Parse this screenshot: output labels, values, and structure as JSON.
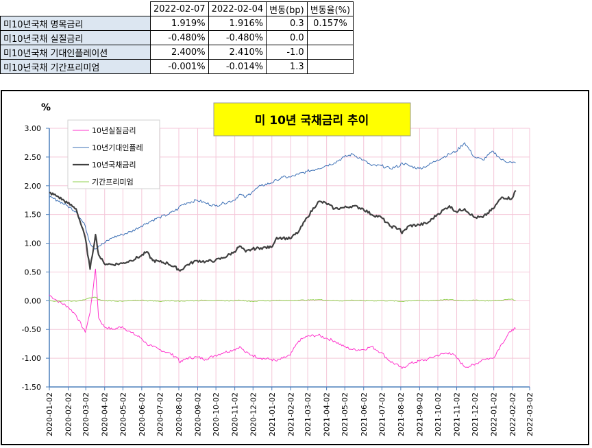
{
  "table": {
    "headers": [
      "2022-02-07",
      "2022-02-04",
      "변동(bp)",
      "변동율(%)"
    ],
    "rows": [
      {
        "label": "미10년국채 명목금리",
        "v1": "1.919%",
        "v2": "1.916%",
        "bp": "0.3",
        "pct": "0.157%"
      },
      {
        "label": "미10년국채 실질금리",
        "v1": "-0.480%",
        "v2": "-0.480%",
        "bp": "0.0",
        "pct": ""
      },
      {
        "label": "미10년국채 기대인플레이션",
        "v1": "2.400%",
        "v2": "2.410%",
        "bp": "-1.0",
        "pct": ""
      },
      {
        "label": "미10년국채 기간프리미엄",
        "v1": "-0.001%",
        "v2": "-0.014%",
        "bp": "1.3",
        "pct": ""
      }
    ]
  },
  "chart_data": {
    "type": "line",
    "title": "미 10년 국채금리 추이",
    "ylabel": "%",
    "ylim": [
      -1.5,
      3.0
    ],
    "yticks": [
      "3.00",
      "2.50",
      "2.00",
      "1.50",
      "1.00",
      "0.50",
      "0.00",
      "-0.50",
      "-1.00",
      "-1.50"
    ],
    "xlim": [
      "2020-01-02",
      "2022-03-02"
    ],
    "xticks": [
      "2020-01-02",
      "2020-02-02",
      "2020-03-02",
      "2020-04-02",
      "2020-05-02",
      "2020-06-02",
      "2020-07-02",
      "2020-08-02",
      "2020-09-02",
      "2020-10-02",
      "2020-11-02",
      "2020-12-02",
      "2021-01-02",
      "2021-02-02",
      "2021-03-02",
      "2021-04-02",
      "2021-05-02",
      "2021-06-02",
      "2021-07-02",
      "2021-08-02",
      "2021-09-02",
      "2021-10-02",
      "2021-11-02",
      "2021-12-02",
      "2022-01-02",
      "2022-02-02",
      "2022-03-02"
    ],
    "grid": true,
    "legend_position": "top-left",
    "x": [
      "2020-01-02",
      "2020-01-15",
      "2020-02-01",
      "2020-02-15",
      "2020-03-01",
      "2020-03-09",
      "2020-03-18",
      "2020-03-23",
      "2020-04-01",
      "2020-04-15",
      "2020-05-01",
      "2020-05-15",
      "2020-06-01",
      "2020-06-10",
      "2020-06-20",
      "2020-07-01",
      "2020-07-15",
      "2020-08-01",
      "2020-08-04",
      "2020-08-15",
      "2020-09-01",
      "2020-09-15",
      "2020-10-01",
      "2020-10-15",
      "2020-11-01",
      "2020-11-10",
      "2020-11-20",
      "2020-12-01",
      "2020-12-15",
      "2021-01-01",
      "2021-01-10",
      "2021-01-20",
      "2021-02-01",
      "2021-02-15",
      "2021-03-01",
      "2021-03-19",
      "2021-04-01",
      "2021-04-15",
      "2021-05-01",
      "2021-05-15",
      "2021-06-01",
      "2021-06-15",
      "2021-07-01",
      "2021-07-15",
      "2021-08-01",
      "2021-08-04",
      "2021-08-15",
      "2021-09-01",
      "2021-09-15",
      "2021-10-01",
      "2021-10-21",
      "2021-11-01",
      "2021-11-15",
      "2021-12-01",
      "2021-12-15",
      "2022-01-01",
      "2022-01-15",
      "2022-02-01",
      "2022-02-07"
    ],
    "series": [
      {
        "name": "10년실질금리",
        "color": "#ff33cc",
        "width": 1,
        "values": [
          0.1,
          0.0,
          -0.1,
          -0.25,
          -0.55,
          -0.2,
          0.55,
          -0.3,
          -0.45,
          -0.5,
          -0.45,
          -0.55,
          -0.65,
          -0.75,
          -0.8,
          -0.85,
          -0.9,
          -1.0,
          -1.08,
          -1.0,
          -0.98,
          -1.02,
          -0.95,
          -0.9,
          -0.85,
          -0.8,
          -0.9,
          -0.95,
          -1.0,
          -1.02,
          -1.05,
          -1.0,
          -0.95,
          -0.7,
          -0.62,
          -0.6,
          -0.65,
          -0.7,
          -0.8,
          -0.85,
          -0.85,
          -0.8,
          -0.9,
          -1.05,
          -1.15,
          -1.18,
          -1.1,
          -1.05,
          -1.02,
          -0.95,
          -0.9,
          -0.98,
          -1.15,
          -1.12,
          -1.02,
          -1.0,
          -0.75,
          -0.5,
          -0.48
        ]
      },
      {
        "name": "10년기대인플레",
        "color": "#3b6fb5",
        "width": 1,
        "values": [
          1.8,
          1.75,
          1.65,
          1.55,
          1.3,
          1.0,
          0.9,
          0.95,
          1.0,
          1.1,
          1.15,
          1.2,
          1.3,
          1.35,
          1.4,
          1.45,
          1.5,
          1.6,
          1.65,
          1.7,
          1.75,
          1.7,
          1.65,
          1.7,
          1.75,
          1.85,
          1.8,
          1.9,
          2.0,
          2.05,
          2.1,
          2.15,
          2.15,
          2.2,
          2.25,
          2.3,
          2.35,
          2.4,
          2.5,
          2.55,
          2.45,
          2.35,
          2.35,
          2.3,
          2.35,
          2.4,
          2.35,
          2.3,
          2.35,
          2.45,
          2.55,
          2.6,
          2.75,
          2.5,
          2.45,
          2.6,
          2.45,
          2.4,
          2.4
        ]
      },
      {
        "name": "10년국채금리",
        "color": "#404040",
        "width": 2.2,
        "values": [
          1.88,
          1.82,
          1.7,
          1.6,
          1.1,
          0.55,
          1.15,
          0.8,
          0.65,
          0.63,
          0.65,
          0.7,
          0.78,
          0.85,
          0.7,
          0.68,
          0.65,
          0.55,
          0.52,
          0.62,
          0.7,
          0.68,
          0.7,
          0.75,
          0.85,
          0.95,
          0.85,
          0.9,
          0.92,
          0.93,
          1.1,
          1.09,
          1.08,
          1.2,
          1.45,
          1.72,
          1.7,
          1.6,
          1.62,
          1.65,
          1.6,
          1.5,
          1.45,
          1.3,
          1.25,
          1.17,
          1.3,
          1.32,
          1.35,
          1.5,
          1.65,
          1.55,
          1.6,
          1.45,
          1.45,
          1.6,
          1.8,
          1.78,
          1.92
        ]
      },
      {
        "name": "기간프리미엄",
        "color": "#92d050",
        "width": 1,
        "values": [
          0.0,
          -0.01,
          0.0,
          -0.01,
          0.02,
          0.05,
          0.06,
          0.02,
          0.0,
          0.0,
          -0.01,
          0.0,
          0.01,
          0.0,
          0.0,
          -0.01,
          0.0,
          0.0,
          -0.01,
          0.0,
          0.0,
          0.01,
          0.0,
          0.0,
          0.0,
          0.01,
          0.0,
          -0.01,
          0.0,
          0.0,
          0.01,
          0.0,
          0.0,
          0.01,
          0.01,
          0.02,
          0.01,
          0.0,
          0.0,
          0.01,
          0.0,
          0.0,
          0.0,
          0.0,
          -0.01,
          -0.01,
          0.0,
          0.0,
          0.0,
          0.01,
          0.02,
          0.01,
          0.0,
          0.01,
          0.0,
          0.0,
          0.01,
          0.03,
          0.0
        ]
      }
    ]
  }
}
